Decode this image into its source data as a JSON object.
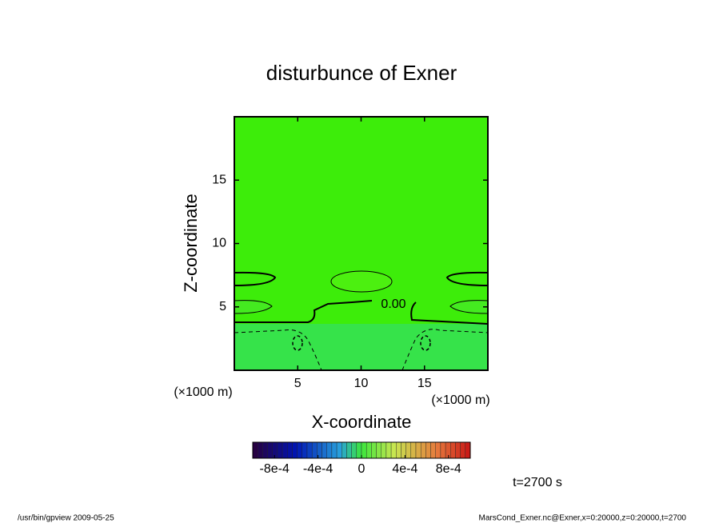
{
  "chart_data": {
    "type": "contour",
    "title": "disturbunce of Exner",
    "x_label": "X-coordinate",
    "y_label": "Z-coordinate",
    "x_unit": "(×1000 m)",
    "y_unit": "(×1000 m)",
    "xlim": [
      0,
      20
    ],
    "xticks": [
      5,
      10,
      15
    ],
    "ylim": [
      0,
      20
    ],
    "yticks": [
      5,
      10,
      15
    ],
    "contour_label": "0.00",
    "colorbar_lim": [
      -0.001,
      0.001
    ],
    "colorbar_ticks": [
      {
        "value": -0.0008,
        "label": "-8e-4"
      },
      {
        "value": -0.0004,
        "label": "-4e-4"
      },
      0,
      {
        "value": 0.0004,
        "label": "4e-4"
      },
      {
        "value": 0.0008,
        "label": "8e-4"
      }
    ],
    "time_label": "t=2700 s",
    "footer_left": "/usr/bin/gpview  2009-05-25",
    "footer_right": "MarsCond_Exner.nc@Exner,x=0:20000,z=0:20000,t=2700"
  }
}
